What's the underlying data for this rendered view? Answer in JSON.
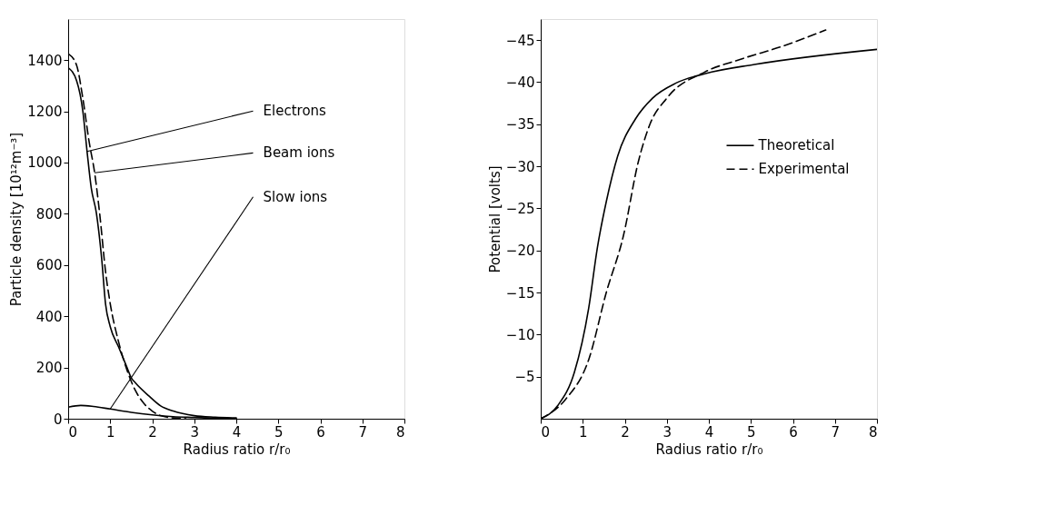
{
  "chart_data": [
    {
      "type": "line",
      "xlabel": "Radius ratio r/r₀",
      "ylabel": "Particle density [10¹²m⁻³]",
      "xlim": [
        0,
        8
      ],
      "xticks": [
        0,
        1,
        2,
        3,
        4,
        5,
        6,
        7,
        8
      ],
      "ylim": [
        0,
        1560
      ],
      "yticks": [
        0,
        200,
        400,
        600,
        800,
        1000,
        1200,
        1400
      ],
      "grid": false,
      "legend": false,
      "series": [
        {
          "name": "Electrons",
          "color": "#000000",
          "line_style": "solid",
          "x": [
            0,
            0.2,
            0.35,
            0.45,
            0.55,
            0.67,
            0.8,
            0.89,
            1.0,
            1.2,
            1.4,
            1.5,
            1.6,
            1.92,
            2.2,
            2.5,
            3.0,
            3.5,
            4.0
          ],
          "values": [
            1370,
            1320,
            1200,
            1043,
            900,
            804,
            620,
            447,
            360,
            280,
            200,
            160,
            140,
            89,
            50,
            30,
            12,
            6,
            3
          ]
        },
        {
          "name": "Beam ions",
          "color": "#000000",
          "line_style": "dashed",
          "x": [
            0,
            0.2,
            0.35,
            0.5,
            0.63,
            0.75,
            0.9,
            1.0,
            1.2,
            1.4,
            1.6,
            1.8,
            2.0,
            2.2,
            2.5,
            2.8
          ],
          "values": [
            1425,
            1380,
            1250,
            1080,
            960,
            800,
            560,
            450,
            300,
            190,
            110,
            60,
            30,
            12,
            3,
            0
          ]
        },
        {
          "name": "Slow ions",
          "color": "#000000",
          "line_style": "solid",
          "x": [
            0,
            0.3,
            0.6,
            1.0,
            1.5,
            2.0,
            2.5,
            3.0,
            3.5,
            4.0
          ],
          "values": [
            45,
            52,
            48,
            38,
            25,
            15,
            8,
            5,
            2,
            1
          ]
        }
      ]
    },
    {
      "type": "line",
      "xlabel": "Radius ratio r/r₀",
      "ylabel": "Potential [volts]",
      "xlim": [
        0,
        8
      ],
      "xticks": [
        0,
        1,
        2,
        3,
        4,
        5,
        6,
        7,
        8
      ],
      "ylim": [
        0,
        -47.5
      ],
      "yticks": [
        -5,
        -10,
        -15,
        -20,
        -25,
        -30,
        -35,
        -40,
        -45
      ],
      "grid": false,
      "legend": "right",
      "series": [
        {
          "name": "Theoretical",
          "color": "#000000",
          "line_style": "solid",
          "x": [
            0,
            0.41,
            0.8,
            1.14,
            1.35,
            1.56,
            1.83,
            2.25,
            2.66,
            3.22,
            3.9,
            5.08,
            8
          ],
          "values": [
            0,
            -1.6,
            -5.5,
            -13.1,
            -20.4,
            -25.8,
            -31.2,
            -35.6,
            -38.1,
            -39.9,
            -41.0,
            -42.1,
            -43.9
          ]
        },
        {
          "name": "Experimental",
          "color": "#000000",
          "line_style": "dashed",
          "x": [
            0,
            0.59,
            1.14,
            1.56,
            1.97,
            2.32,
            2.59,
            3.0,
            3.9,
            4.74,
            5.77,
            6.78
          ],
          "values": [
            0,
            -2.3,
            -7.0,
            -15,
            -21.8,
            -30.5,
            -34.9,
            -38.1,
            -41.2,
            -42.7,
            -44.3,
            -46.2
          ]
        }
      ]
    }
  ]
}
